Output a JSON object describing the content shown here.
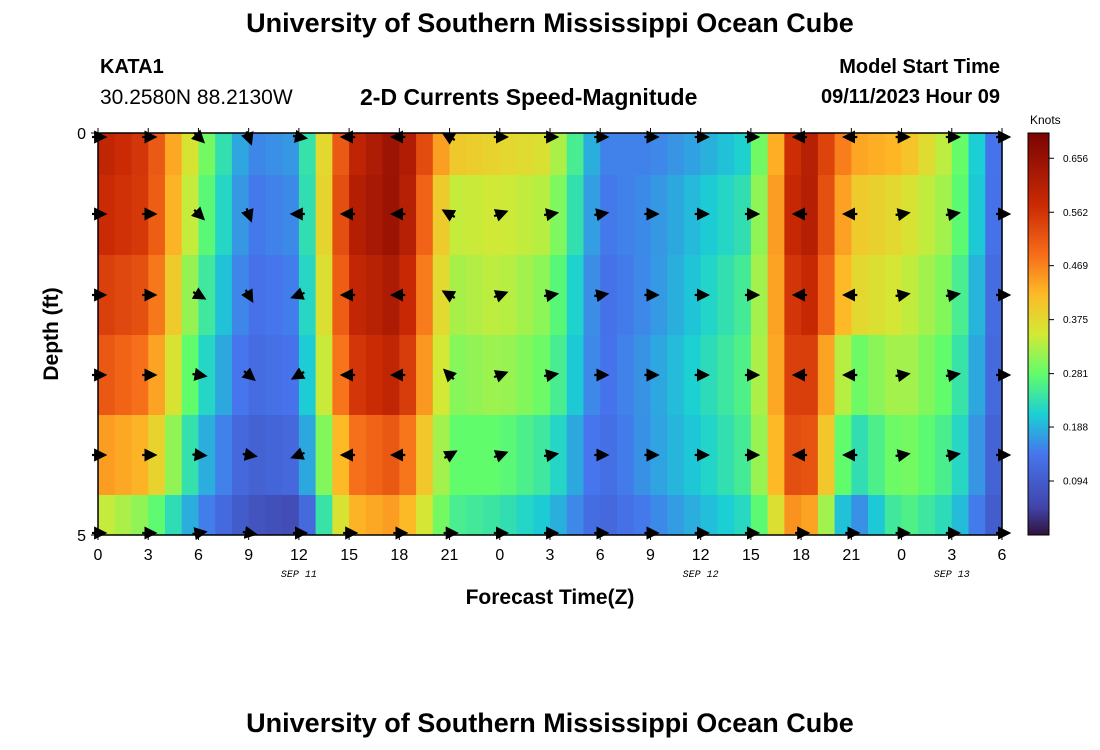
{
  "header": {
    "title": "University of Southern Mississippi Ocean Cube",
    "station": "KATA1",
    "coords": "30.2580N  88.2130W",
    "chart_title": "2-D Currents Speed-Magnitude",
    "model_start_label": "Model Start Time",
    "model_start_value": "09/11/2023 Hour 09"
  },
  "footer": {
    "title": "University of Southern Mississippi Ocean Cube"
  },
  "chart_data": {
    "type": "heatmap",
    "xlabel": "Forecast Time(Z)",
    "ylabel": "Depth (ft)",
    "x_tick_labels": [
      "0",
      "3",
      "6",
      "9",
      "12",
      "15",
      "18",
      "21",
      "0",
      "3",
      "6",
      "9",
      "12",
      "15",
      "18",
      "21",
      "0",
      "3",
      "6"
    ],
    "x_range_hours": [
      0,
      54
    ],
    "y_tick_labels": [
      "0",
      "5"
    ],
    "y_range_ft": [
      0,
      5
    ],
    "date_labels": [
      {
        "label": "SEP 11",
        "at_hour": 12
      },
      {
        "label": "SEP 12",
        "at_hour": 36
      },
      {
        "label": "SEP 13",
        "at_hour": 51
      }
    ],
    "colorbar": {
      "title": "Knots",
      "ticks": [
        "0.656",
        "0.562",
        "0.469",
        "0.375",
        "0.281",
        "0.188",
        "0.094"
      ],
      "tick_values": [
        0.656,
        0.562,
        0.469,
        0.375,
        0.281,
        0.188,
        0.094
      ],
      "range": [
        0,
        0.7
      ]
    },
    "rows_depth_ft": [
      0.25,
      1.0,
      2.0,
      3.0,
      4.0,
      4.75
    ],
    "hours": [
      0,
      3,
      6,
      9,
      12,
      15,
      18,
      21,
      24,
      27,
      30,
      33,
      36,
      39,
      42,
      45,
      48,
      51,
      54
    ],
    "speed_knots": [
      [
        0.6,
        0.55,
        0.32,
        0.15,
        0.17,
        0.58,
        0.66,
        0.4,
        0.38,
        0.36,
        0.15,
        0.15,
        0.18,
        0.22,
        0.64,
        0.44,
        0.42,
        0.32,
        0.1
      ],
      [
        0.58,
        0.55,
        0.3,
        0.14,
        0.16,
        0.6,
        0.66,
        0.34,
        0.35,
        0.33,
        0.14,
        0.16,
        0.2,
        0.24,
        0.65,
        0.4,
        0.37,
        0.31,
        0.1
      ],
      [
        0.55,
        0.52,
        0.27,
        0.13,
        0.15,
        0.58,
        0.63,
        0.32,
        0.34,
        0.3,
        0.13,
        0.16,
        0.21,
        0.26,
        0.62,
        0.38,
        0.35,
        0.29,
        0.09
      ],
      [
        0.52,
        0.48,
        0.24,
        0.12,
        0.14,
        0.55,
        0.6,
        0.3,
        0.32,
        0.28,
        0.13,
        0.17,
        0.22,
        0.27,
        0.6,
        0.28,
        0.33,
        0.27,
        0.09
      ],
      [
        0.45,
        0.42,
        0.2,
        0.1,
        0.12,
        0.48,
        0.52,
        0.28,
        0.28,
        0.24,
        0.12,
        0.17,
        0.21,
        0.26,
        0.58,
        0.22,
        0.3,
        0.25,
        0.08
      ],
      [
        0.35,
        0.3,
        0.16,
        0.08,
        0.06,
        0.42,
        0.45,
        0.26,
        0.24,
        0.2,
        0.11,
        0.15,
        0.19,
        0.23,
        0.5,
        0.14,
        0.27,
        0.22,
        0.07
      ]
    ],
    "direction_deg": [
      [
        90,
        90,
        135,
        160,
        100,
        270,
        270,
        300,
        90,
        90,
        90,
        90,
        90,
        90,
        270,
        270,
        90,
        90,
        90
      ],
      [
        90,
        90,
        135,
        160,
        270,
        270,
        270,
        300,
        70,
        80,
        80,
        90,
        90,
        90,
        270,
        270,
        80,
        80,
        90
      ],
      [
        90,
        90,
        120,
        150,
        250,
        270,
        270,
        300,
        70,
        80,
        80,
        90,
        90,
        90,
        270,
        270,
        80,
        80,
        90
      ],
      [
        90,
        90,
        100,
        130,
        240,
        270,
        270,
        315,
        70,
        80,
        90,
        90,
        90,
        90,
        270,
        270,
        80,
        80,
        90
      ],
      [
        90,
        90,
        95,
        100,
        250,
        270,
        270,
        60,
        70,
        80,
        90,
        90,
        90,
        90,
        270,
        270,
        80,
        80,
        90
      ],
      [
        90,
        90,
        80,
        100,
        90,
        90,
        90,
        90,
        90,
        90,
        90,
        90,
        90,
        90,
        90,
        90,
        90,
        90,
        90
      ]
    ]
  }
}
